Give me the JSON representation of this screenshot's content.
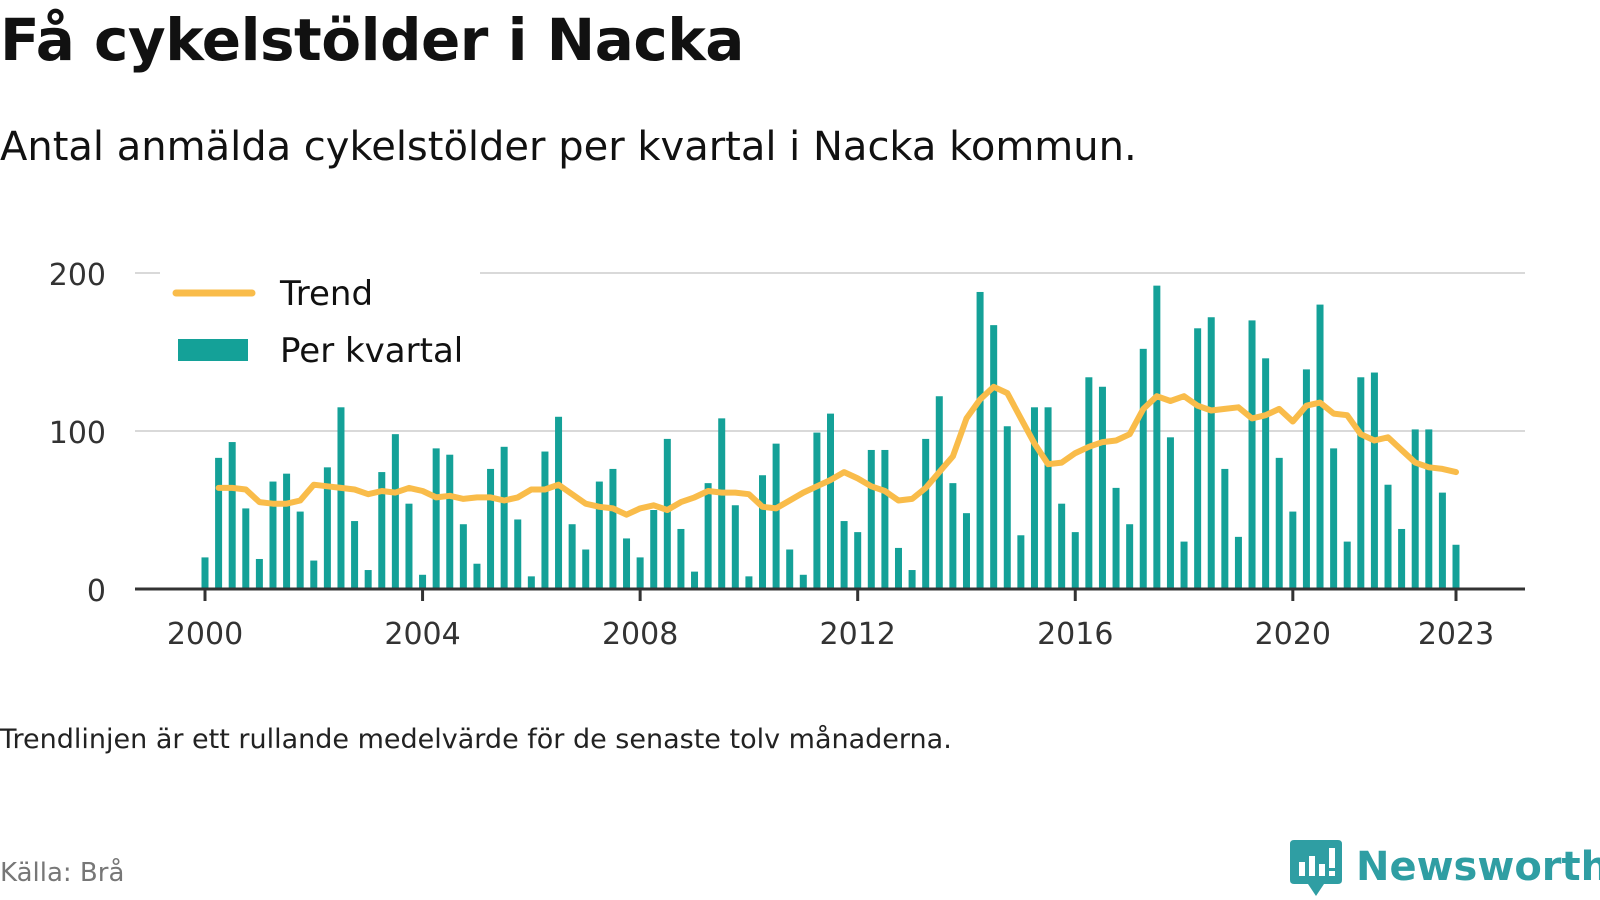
{
  "title": "Få cykelstölder i Nacka",
  "subtitle": "Antal anmälda cykelstölder per kvartal i Nacka kommun.",
  "note": "Trendlinjen är ett rullande medelvärde för de senaste tolv månaderna.",
  "source": "Källa: Brå",
  "brand": "Newsworthy",
  "colors": {
    "bar": "#14a198",
    "trend": "#f9bc4a",
    "brand": "#2f9ea3",
    "grid": "#d9d9d9",
    "axis": "#333333"
  },
  "chart_data": {
    "type": "bar",
    "y_ticks": [
      0,
      100,
      200
    ],
    "ylim": [
      0,
      200
    ],
    "x_ticks": [
      "2000",
      "2004",
      "2008",
      "2012",
      "2016",
      "2020",
      "2023"
    ],
    "grid": true,
    "legend_position": "top-left",
    "series": [
      {
        "name": "Per kvartal",
        "kind": "bar",
        "values": [
          20,
          83,
          93,
          51,
          19,
          68,
          73,
          49,
          18,
          77,
          115,
          43,
          12,
          74,
          98,
          54,
          9,
          89,
          85,
          41,
          16,
          76,
          90,
          44,
          8,
          87,
          109,
          41,
          25,
          68,
          76,
          32,
          20,
          50,
          95,
          38,
          11,
          67,
          108,
          53,
          8,
          72,
          92,
          25,
          9,
          99,
          111,
          43,
          36,
          88,
          88,
          26,
          12,
          95,
          122,
          67,
          48,
          188,
          167,
          103,
          34,
          115,
          115,
          54,
          36,
          134,
          128,
          64,
          41,
          152,
          192,
          96,
          30,
          165,
          172,
          76,
          33,
          170,
          146,
          83,
          49,
          139,
          180,
          89,
          30,
          134,
          137,
          66,
          38,
          101,
          101,
          61,
          28
        ]
      },
      {
        "name": "Trend",
        "kind": "line",
        "values": [
          64,
          64,
          63,
          55,
          54,
          54,
          56,
          66,
          65,
          64,
          63,
          60,
          62,
          61,
          64,
          62,
          58,
          59,
          57,
          58,
          58,
          56,
          58,
          63,
          63,
          66,
          60,
          54,
          52,
          51,
          47,
          51,
          53,
          50,
          55,
          58,
          62,
          61,
          61,
          60,
          52,
          51,
          56,
          61,
          65,
          69,
          74,
          70,
          65,
          62,
          56,
          57,
          64,
          74,
          84,
          108,
          120,
          128,
          124,
          108,
          92,
          79,
          80,
          86,
          90,
          93,
          94,
          98,
          114,
          122,
          119,
          122,
          116,
          113,
          114,
          115,
          108,
          110,
          114,
          106,
          116,
          118,
          111,
          110,
          98,
          94,
          96,
          88,
          80,
          77,
          76,
          74
        ]
      }
    ]
  }
}
